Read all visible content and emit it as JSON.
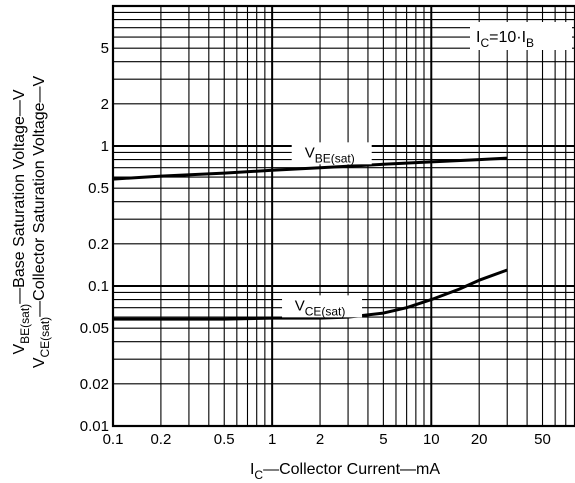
{
  "chart_data": {
    "type": "line",
    "x_scale": "log",
    "y_scale": "log",
    "xlim": [
      0.1,
      80
    ],
    "ylim": [
      0.01,
      10
    ],
    "grid": true,
    "x_ticks": [
      {
        "value": 0.1,
        "label": "0.1"
      },
      {
        "value": 0.2,
        "label": "0.2"
      },
      {
        "value": 0.5,
        "label": "0.5"
      },
      {
        "value": 1,
        "label": "1"
      },
      {
        "value": 2,
        "label": "2"
      },
      {
        "value": 5,
        "label": "5"
      },
      {
        "value": 10,
        "label": "10"
      },
      {
        "value": 20,
        "label": "20"
      },
      {
        "value": 50,
        "label": "50"
      }
    ],
    "y_ticks": [
      {
        "value": 0.01,
        "label": "0.01"
      },
      {
        "value": 0.02,
        "label": "0.02"
      },
      {
        "value": 0.05,
        "label": "0.05"
      },
      {
        "value": 0.1,
        "label": "0.1"
      },
      {
        "value": 0.2,
        "label": "0.2"
      },
      {
        "value": 0.5,
        "label": "0.5"
      },
      {
        "value": 1,
        "label": "1"
      },
      {
        "value": 2,
        "label": "2"
      },
      {
        "value": 5,
        "label": "5"
      }
    ],
    "xlabel": {
      "main": "I",
      "sub": "C",
      "rest": "—Collector Current—mA"
    },
    "ylabel_lines": [
      {
        "main": "V",
        "sub": "BE(sat)",
        "rest": "—Base Saturation Voltage—V"
      },
      {
        "main": "V",
        "sub": "CE(sat)",
        "rest": "—Collector Saturation Voltage—V"
      }
    ],
    "condition": {
      "a": "I",
      "a_sub": "C",
      "mid": "=10·I",
      "b_sub": "B"
    },
    "series": [
      {
        "label_main": "V",
        "label_sub": "BE(sat)",
        "label_at": [
          2.3,
          0.83
        ],
        "x": [
          0.1,
          0.2,
          0.5,
          1,
          2,
          5,
          10,
          20,
          30
        ],
        "y": [
          0.58,
          0.61,
          0.64,
          0.67,
          0.7,
          0.74,
          0.77,
          0.8,
          0.82
        ]
      },
      {
        "label_main": "V",
        "label_sub": "CE(sat)",
        "label_at": [
          2.0,
          0.067
        ],
        "x": [
          0.1,
          0.2,
          0.5,
          1,
          2,
          3,
          5,
          7,
          10,
          15,
          20,
          30
        ],
        "y": [
          0.058,
          0.058,
          0.058,
          0.059,
          0.059,
          0.06,
          0.064,
          0.07,
          0.08,
          0.095,
          0.11,
          0.13
        ]
      }
    ]
  }
}
